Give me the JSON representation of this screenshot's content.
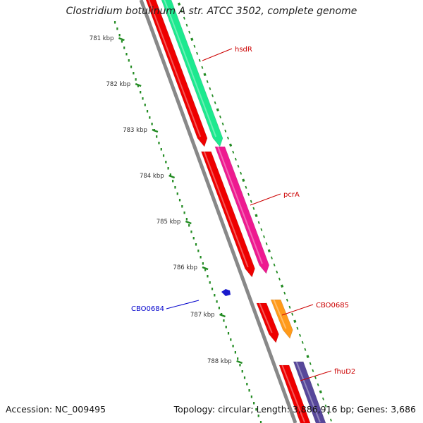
{
  "title": "Clostridium botulinum A str. ATCC 3502, complete genome",
  "footer": {
    "accession": "Accession: NC_009495",
    "topology": "Topology: circular; Length: 3,886,916 bp; Genes: 3,686"
  },
  "ruler": {
    "unit": "kbp",
    "ticks": [
      "781 kbp",
      "782 kbp",
      "783 kbp",
      "784 kbp",
      "785 kbp",
      "786 kbp",
      "787 kbp",
      "788 kbp"
    ]
  },
  "genes": [
    {
      "name": "hsdR",
      "label_color": "#cc0000",
      "feature_color": "#1de98f",
      "strand": "forward"
    },
    {
      "name": "pcrA",
      "label_color": "#cc0000",
      "feature_color": "#ee1a90",
      "strand": "forward"
    },
    {
      "name": "CBO0685",
      "label_color": "#cc0000",
      "feature_color": "#ff9a1a",
      "strand": "forward"
    },
    {
      "name": "fhuD2",
      "label_color": "#cc0000",
      "feature_color": "#57479a",
      "strand": "forward"
    },
    {
      "name": "CBO0684",
      "label_color": "#0000cc",
      "feature_color": "#1a1acc",
      "strand": "reverse"
    }
  ],
  "colors": {
    "backbone": "#888888",
    "cds_track": "#ee0000",
    "ticks": "#228b22"
  }
}
